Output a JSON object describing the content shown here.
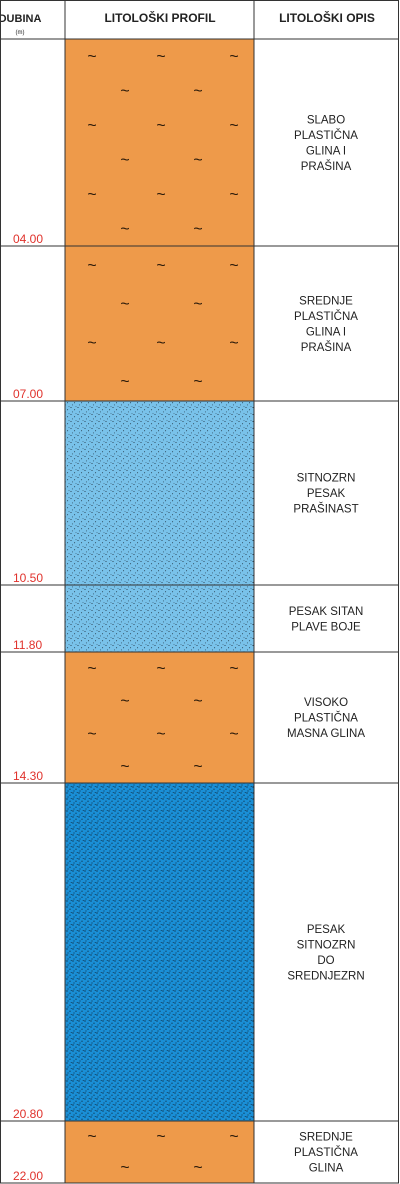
{
  "header": {
    "depth_title": "DUBINA",
    "depth_unit": "(m)",
    "profile_title": "LITOLOŠKI PROFIL",
    "description_title": "LITOLOŠKI OPIS"
  },
  "colors": {
    "clay": "#EE9A4A",
    "fine_sand": "#79C2EA",
    "medium_sand": "#1A8FD6",
    "depth_text": "#E0322C",
    "grid": "#333333"
  },
  "layers": [
    {
      "bottom_depth": "04.00",
      "type": "clay",
      "pattern": "tilde",
      "description": [
        "SLABO",
        "PLASTIČNA",
        "GLINA I",
        "PRAŠINA"
      ]
    },
    {
      "bottom_depth": "07.00",
      "type": "clay",
      "pattern": "tilde",
      "description": [
        "SREDNJE",
        "PLASTIČNA",
        "GLINA I",
        "PRAŠINA"
      ]
    },
    {
      "bottom_depth": "10.50",
      "type": "fine_sand",
      "pattern": "dots",
      "description": [
        "SITNOZRN",
        "PESAK",
        "PRAŠINAST"
      ]
    },
    {
      "bottom_depth": "11.80",
      "type": "fine_sand",
      "pattern": "dots",
      "description": [
        "PESAK SITAN",
        "PLAVE BOJE"
      ]
    },
    {
      "bottom_depth": "14.30",
      "type": "clay",
      "pattern": "tilde",
      "description": [
        "VISOKO",
        "PLASTIČNA",
        "MASNA GLINA"
      ]
    },
    {
      "bottom_depth": "20.80",
      "type": "medium_sand",
      "pattern": "dots",
      "description": [
        "PESAK",
        "SITNOZRN",
        "DO",
        "SREDNJEZRN"
      ]
    },
    {
      "bottom_depth": "22.00",
      "type": "clay",
      "pattern": "tilde",
      "description": [
        "SREDNJE",
        "PLASTIČNA",
        "GLINA"
      ]
    }
  ]
}
